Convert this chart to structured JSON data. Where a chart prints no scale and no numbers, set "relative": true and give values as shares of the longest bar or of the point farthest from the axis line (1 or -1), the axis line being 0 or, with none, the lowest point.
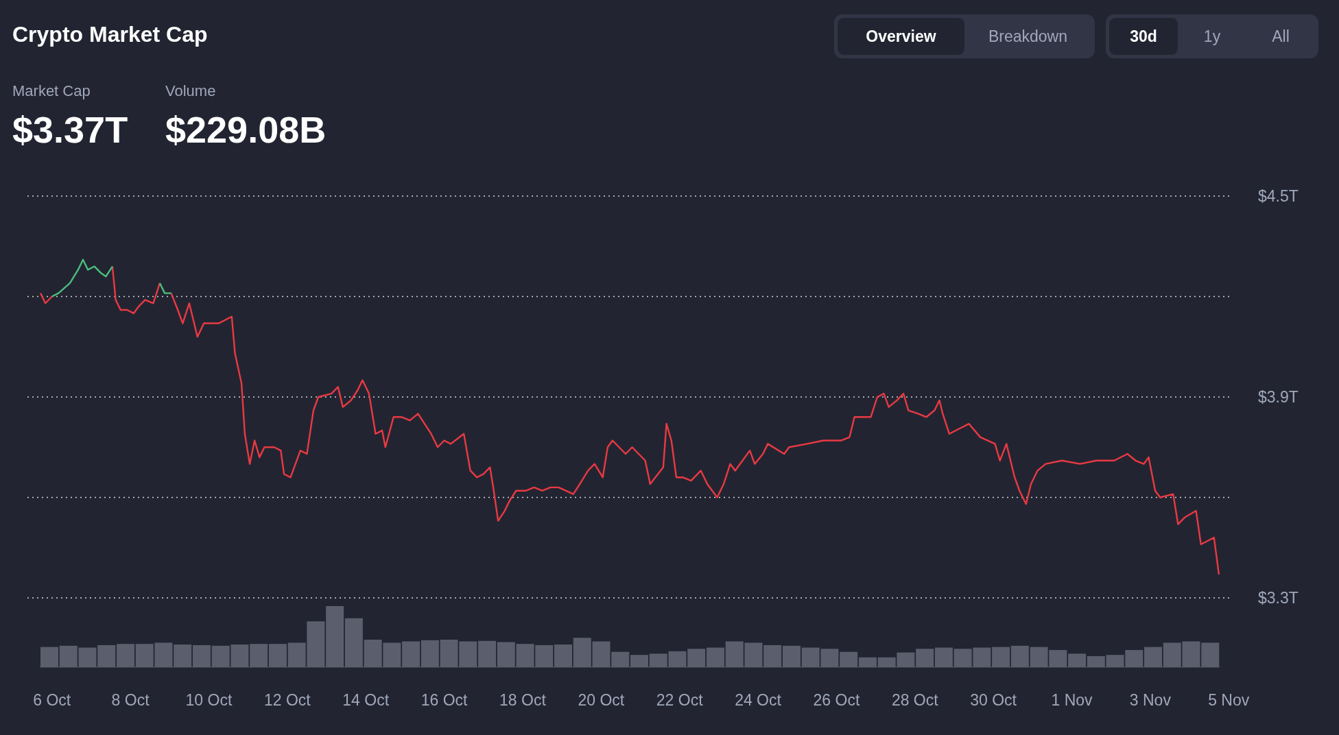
{
  "chart_data": [
    {
      "type": "line",
      "title": "Crypto Market Cap",
      "annotations": [
        "Market Cap",
        "$3.37T",
        "Volume",
        "$229.08B",
        "Overview",
        "Breakdown",
        "30d",
        "1y",
        "All"
      ],
      "x": [
        "--10-05T17:00",
        "--10-05T20:00",
        "--10-06T00:00",
        "--10-06T04:00",
        "--10-06T11:00",
        "--10-06T16:00",
        "--10-06T19:00",
        "--10-06T22:00",
        "--10-07T02:00",
        "--10-07T06:00",
        "--10-07T09:00",
        "--10-07T13:00",
        "--10-07T15:00",
        "--10-07T18:00",
        "--10-07T22:00",
        "--10-08T02:00",
        "--10-08T05:00",
        "--10-08T09:00",
        "--10-08T14:00",
        "--10-08T18:00",
        "--10-08T21:00",
        "--10-09T01:00",
        "--10-09T05:00",
        "--10-09T08:00",
        "--10-09T12:00",
        "--10-09T17:00",
        "--10-09T21:00",
        "--10-10T06:00",
        "--10-10T14:00",
        "--10-10T16:00",
        "--10-10T20:00",
        "--10-10T22:00",
        "--10-11T01:00",
        "--10-11T04:00",
        "--10-11T07:00",
        "--10-11T10:00",
        "--10-11T16:00",
        "--10-11T20:00",
        "--10-11T22:00",
        "--10-12T02:00",
        "--10-12T08:00",
        "--10-12T12:00",
        "--10-12T16:00",
        "--10-12T19:00",
        "--10-13T03:00",
        "--10-13T07:00",
        "--10-13T10:00",
        "--10-13T15:00",
        "--10-13T19:00",
        "--10-13T22:00",
        "--10-14T02:00",
        "--10-14T06:00",
        "--10-14T10:00",
        "--10-14T12:00",
        "--10-14T17:00",
        "--10-14T22:00",
        "--10-15T03:00",
        "--10-15T08:00",
        "--10-15T12:00",
        "--10-15T16:00",
        "--10-15T20:00",
        "--10-16T00:00",
        "--10-16T04:00",
        "--10-16T12:00",
        "--10-16T16:00",
        "--10-16T20:00",
        "--10-17T00:00",
        "--10-17T04:00",
        "--10-17T06:00",
        "--10-17T09:00",
        "--10-17T13:00",
        "--10-17T16:00",
        "--10-17T20:00",
        "--10-18T02:00",
        "--10-18T07:00",
        "--10-18T12:00",
        "--10-18T17:00",
        "--10-18T22:00",
        "--10-19T07:00",
        "--10-19T11:00",
        "--10-19T16:00",
        "--10-19T20:00",
        "--10-20T01:00",
        "--10-20T04:00",
        "--10-20T07:00",
        "--10-20T15:00",
        "--10-20T19:00",
        "--10-21T03:00",
        "--10-21T06:00",
        "--10-21T14:00",
        "--10-21T16:00",
        "--10-21T19:00",
        "--10-21T22:00",
        "--10-22T02:00",
        "--10-22T07:00",
        "--10-22T13:00",
        "--10-22T17:00",
        "--10-22T23:00",
        "--10-23T03:00",
        "--10-23T07:00",
        "--10-23T10:00",
        "--10-23T19:00",
        "--10-23T22:00",
        "--10-24T03:00",
        "--10-24T06:00",
        "--10-24T16:00",
        "--10-24T19:00",
        "--10-25T06:00",
        "--10-25T16:00",
        "--10-26T03:00",
        "--10-26T08:00",
        "--10-26T11:00",
        "--10-26T21:00",
        "--10-27T01:00",
        "--10-27T05:00",
        "--10-27T08:00",
        "--10-27T13:00",
        "--10-27T17:00",
        "--10-27T20:00",
        "--10-28T02:00",
        "--10-28T07:00",
        "--10-28T12:00",
        "--10-28T15:00",
        "--10-28T17:00",
        "--10-28T21:00",
        "--10-29T05:00",
        "--10-29T09:00",
        "--10-29T16:00",
        "--10-30T01:00",
        "--10-30T04:00",
        "--10-30T08:00",
        "--10-30T13:00",
        "--10-30T16:00",
        "--10-30T20:00",
        "--10-30T23:00",
        "--10-31T03:00",
        "--10-31T08:00",
        "--10-31T18:00",
        "--11-01T05:00",
        "--11-01T15:00",
        "--11-02T02:00",
        "--11-02T10:00",
        "--11-02T15:00",
        "--11-02T20:00",
        "--11-02T23:00",
        "--11-03T03:00",
        "--11-03T06:00",
        "--11-03T14:00",
        "--11-03T17:00",
        "--11-03T21:00",
        "--11-04T04:00",
        "--11-04T07:00",
        "--11-04T11:00",
        "--11-04T15:00",
        "--11-04T18:00"
      ],
      "series": [
        {
          "color": "#ea3943",
          "values": [
            4.21,
            4.18,
            4.2,
            null,
            null,
            null,
            null,
            null,
            null,
            null,
            null,
            4.29,
            4.19,
            4.16,
            4.16,
            4.15,
            4.17,
            4.19,
            4.18,
            4.24,
            null,
            4.21,
            4.16,
            4.12,
            4.18,
            4.08,
            4.12,
            4.12,
            4.14,
            4.03,
            3.94,
            3.79,
            3.7,
            3.77,
            3.72,
            3.75,
            3.75,
            3.74,
            3.67,
            3.66,
            3.74,
            3.73,
            3.86,
            3.9,
            3.91,
            3.93,
            3.87,
            3.89,
            3.92,
            3.95,
            3.91,
            3.79,
            3.8,
            3.75,
            3.84,
            3.84,
            3.83,
            3.85,
            3.82,
            3.79,
            3.75,
            3.77,
            3.76,
            3.79,
            3.68,
            3.66,
            3.67,
            3.69,
            3.63,
            3.53,
            3.56,
            3.59,
            3.62,
            3.62,
            3.63,
            3.62,
            3.63,
            3.63,
            3.61,
            3.64,
            3.68,
            3.7,
            3.66,
            3.75,
            3.77,
            3.73,
            3.75,
            3.71,
            3.64,
            3.69,
            3.82,
            3.77,
            3.66,
            3.66,
            3.65,
            3.68,
            3.64,
            3.6,
            3.64,
            3.7,
            3.68,
            3.74,
            3.7,
            3.73,
            3.76,
            3.73,
            3.75,
            3.76,
            3.77,
            3.77,
            3.78,
            3.84,
            3.84,
            3.9,
            3.91,
            3.87,
            3.89,
            3.91,
            3.86,
            3.85,
            3.84,
            3.86,
            3.89,
            3.85,
            3.79,
            3.81,
            3.82,
            3.78,
            3.76,
            3.71,
            3.76,
            3.66,
            3.62,
            3.58,
            3.64,
            3.68,
            3.7,
            3.71,
            3.7,
            3.71,
            3.71,
            3.73,
            3.71,
            3.7,
            3.72,
            3.62,
            3.6,
            3.61,
            3.52,
            3.54,
            3.56,
            3.46,
            3.47,
            3.48,
            3.37
          ]
        },
        {
          "color": "#4bbf7e",
          "values": [
            null,
            null,
            4.2,
            4.21,
            4.24,
            4.28,
            4.31,
            4.28,
            4.29,
            4.27,
            4.26,
            4.29,
            null,
            null,
            null,
            null,
            null,
            null,
            null,
            4.24,
            4.21,
            4.21,
            null,
            null,
            null,
            null,
            null,
            null,
            null,
            null,
            null,
            null,
            null,
            null,
            null,
            null,
            null,
            null,
            null,
            null,
            null,
            null,
            null,
            null,
            null,
            null,
            null,
            null,
            null,
            null,
            null,
            null,
            null,
            null,
            null,
            null,
            null,
            null,
            null,
            null,
            null,
            null,
            null,
            null,
            null,
            null,
            null,
            null,
            null,
            null,
            null,
            null,
            null,
            null,
            null,
            null,
            null,
            null,
            null,
            null,
            null,
            null,
            null,
            null,
            null,
            null,
            null,
            null,
            null,
            null,
            null,
            null,
            null,
            null,
            null,
            null,
            null,
            null,
            null,
            null,
            null,
            null,
            null,
            null,
            null,
            null,
            null,
            null,
            null,
            null,
            null,
            null,
            null,
            null,
            null,
            null,
            null,
            null,
            null,
            null,
            null,
            null,
            null,
            null,
            null,
            null,
            null,
            null,
            null,
            null,
            null,
            null,
            null,
            null,
            null,
            null,
            null,
            null,
            null,
            null,
            null,
            null,
            null,
            null,
            null,
            null,
            null,
            null,
            null,
            null,
            null,
            null,
            null,
            null,
            null
          ]
        }
      ],
      "xlim": [
        "--10-05T09:00",
        "--11-05T02:00"
      ],
      "xticks": [
        {
          "value": "--10-06",
          "label": "6 Oct"
        },
        {
          "value": "--10-08",
          "label": "8 Oct"
        },
        {
          "value": "--10-10",
          "label": "10 Oct"
        },
        {
          "value": "--10-12",
          "label": "12 Oct"
        },
        {
          "value": "--10-14",
          "label": "14 Oct"
        },
        {
          "value": "--10-16",
          "label": "16 Oct"
        },
        {
          "value": "--10-18",
          "label": "18 Oct"
        },
        {
          "value": "--10-20",
          "label": "20 Oct"
        },
        {
          "value": "--10-22",
          "label": "22 Oct"
        },
        {
          "value": "--10-24",
          "label": "24 Oct"
        },
        {
          "value": "--10-26",
          "label": "26 Oct"
        },
        {
          "value": "--10-28",
          "label": "28 Oct"
        },
        {
          "value": "--10-30",
          "label": "30 Oct"
        },
        {
          "value": "--11-01",
          "label": "1 Nov"
        },
        {
          "value": "--11-03",
          "label": "3 Nov"
        },
        {
          "value": "--11-05",
          "label": "5 Nov"
        }
      ],
      "ylim": [
        3.3,
        4.5
      ],
      "yticks": [
        {
          "value": 3.3,
          "label": "$3.3T"
        },
        {
          "value": 3.6,
          "label": null
        },
        {
          "value": 3.9,
          "label": "$3.9T"
        },
        {
          "value": 4.2,
          "label": null
        },
        {
          "value": 4.5,
          "label": "$4.5T"
        }
      ],
      "grid": "y",
      "marker": "none",
      "line_style": "solid"
    },
    {
      "type": "bar",
      "relative": true,
      "tick_labels": false,
      "color": "#5b5f6d",
      "categories": [
        null,
        null,
        null,
        null,
        null,
        null,
        null,
        null,
        null,
        null,
        null,
        null,
        null,
        null,
        null,
        null,
        null,
        null,
        null,
        null,
        null,
        null,
        null,
        null,
        null,
        null,
        null,
        null,
        null,
        null,
        null,
        null,
        null,
        null,
        null,
        null,
        null,
        null,
        null,
        null,
        null,
        null,
        null,
        null,
        null,
        null,
        null,
        null,
        null,
        null,
        null,
        null,
        null,
        null,
        null,
        null,
        null,
        null,
        null,
        null,
        null,
        null
      ],
      "values": [
        0.33,
        0.35,
        0.32,
        0.36,
        0.38,
        0.38,
        0.4,
        0.37,
        0.36,
        0.35,
        0.37,
        0.38,
        0.38,
        0.4,
        0.75,
        1.0,
        0.8,
        0.45,
        0.4,
        0.42,
        0.44,
        0.45,
        0.42,
        0.43,
        0.41,
        0.38,
        0.36,
        0.37,
        0.48,
        0.42,
        0.25,
        0.2,
        0.22,
        0.26,
        0.3,
        0.32,
        0.42,
        0.4,
        0.36,
        0.35,
        0.32,
        0.3,
        0.25,
        0.16,
        0.16,
        0.24,
        0.3,
        0.32,
        0.3,
        0.32,
        0.33,
        0.35,
        0.33,
        0.28,
        0.22,
        0.18,
        0.2,
        0.28,
        0.33,
        0.4,
        0.42,
        0.4
      ]
    }
  ]
}
